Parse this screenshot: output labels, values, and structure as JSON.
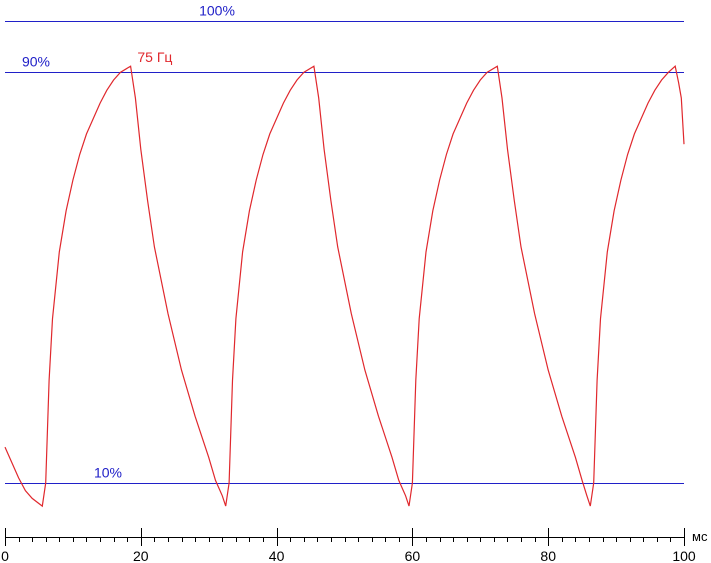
{
  "chart_data": {
    "type": "line",
    "x_unit": "мс",
    "xlim": [
      0,
      100
    ],
    "x_ticks": [
      "0",
      "20",
      "40",
      "60",
      "80",
      "100"
    ],
    "x_minor_step": 2,
    "ylim_percent": [
      -13,
      103
    ],
    "reference_lines": [
      {
        "label": "100%",
        "y": 100
      },
      {
        "label": "90%",
        "y": 90
      },
      {
        "label": "10%",
        "y": 10
      }
    ],
    "series": [
      {
        "name": "75 Гц",
        "points": [
          [
            0,
            17
          ],
          [
            1,
            14
          ],
          [
            2,
            11
          ],
          [
            3,
            8.5
          ],
          [
            4,
            7
          ],
          [
            5.5,
            5.5
          ],
          [
            6,
            10
          ],
          [
            6.5,
            30
          ],
          [
            7,
            42
          ],
          [
            8,
            55
          ],
          [
            9,
            63
          ],
          [
            10,
            69
          ],
          [
            11,
            74
          ],
          [
            12,
            78
          ],
          [
            13,
            81
          ],
          [
            14,
            84
          ],
          [
            15,
            86.5
          ],
          [
            16,
            88.5
          ],
          [
            17,
            90
          ],
          [
            18.5,
            91.2
          ],
          [
            19.2,
            85
          ],
          [
            20,
            75
          ],
          [
            21,
            65
          ],
          [
            22,
            56
          ],
          [
            24,
            43
          ],
          [
            26,
            32
          ],
          [
            28,
            23
          ],
          [
            30,
            15
          ],
          [
            31,
            10.5
          ],
          [
            32,
            7.5
          ],
          [
            32.5,
            5.5
          ],
          [
            33,
            10
          ],
          [
            33.5,
            30
          ],
          [
            34,
            42
          ],
          [
            35,
            55
          ],
          [
            36,
            63
          ],
          [
            37,
            69
          ],
          [
            38,
            74
          ],
          [
            39,
            78
          ],
          [
            40,
            81
          ],
          [
            41,
            84
          ],
          [
            42,
            86.5
          ],
          [
            43,
            88.5
          ],
          [
            44,
            90
          ],
          [
            45.5,
            91.2
          ],
          [
            46.2,
            85
          ],
          [
            47,
            75
          ],
          [
            48,
            65
          ],
          [
            49,
            56
          ],
          [
            51,
            43
          ],
          [
            53,
            32
          ],
          [
            55,
            23
          ],
          [
            57,
            15
          ],
          [
            58,
            10.5
          ],
          [
            59,
            7.5
          ],
          [
            59.5,
            5.5
          ],
          [
            60,
            10
          ],
          [
            60.5,
            30
          ],
          [
            61,
            42
          ],
          [
            62,
            55
          ],
          [
            63,
            63
          ],
          [
            64,
            69
          ],
          [
            65,
            74
          ],
          [
            66,
            78
          ],
          [
            67,
            81
          ],
          [
            68,
            84
          ],
          [
            69,
            86.5
          ],
          [
            70,
            88.5
          ],
          [
            71,
            90
          ],
          [
            72.5,
            91.2
          ],
          [
            73.2,
            85
          ],
          [
            74,
            75
          ],
          [
            75,
            65
          ],
          [
            76,
            56
          ],
          [
            78,
            43
          ],
          [
            80,
            32
          ],
          [
            82,
            23
          ],
          [
            84,
            15
          ],
          [
            85,
            10.5
          ],
          [
            85.7,
            7.5
          ],
          [
            86.2,
            5.5
          ],
          [
            86.7,
            10
          ],
          [
            87.2,
            30
          ],
          [
            87.7,
            42
          ],
          [
            88.7,
            55
          ],
          [
            89.7,
            63
          ],
          [
            90.7,
            69
          ],
          [
            91.7,
            74
          ],
          [
            92.7,
            78
          ],
          [
            93.7,
            81
          ],
          [
            94.7,
            84
          ],
          [
            95.7,
            86.5
          ],
          [
            96.7,
            88.5
          ],
          [
            97.7,
            90
          ],
          [
            98.7,
            91.2
          ],
          [
            99.2,
            88
          ],
          [
            99.6,
            85
          ],
          [
            100,
            76
          ]
        ]
      }
    ],
    "colors": {
      "series": "#e0282d",
      "reference": "#2020c8",
      "axis": "#000000",
      "background": "#ffffff"
    }
  }
}
